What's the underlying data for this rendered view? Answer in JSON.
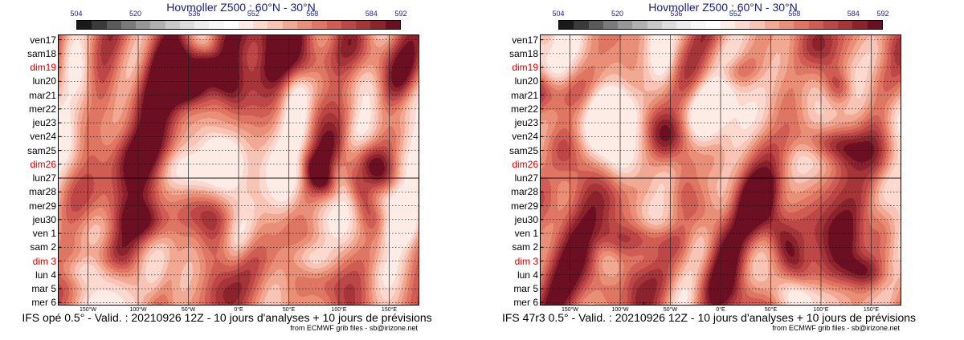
{
  "colorbar": {
    "tick_labels": [
      "504",
      "520",
      "536",
      "552",
      "568",
      "584",
      "592"
    ],
    "tick_values": [
      504,
      520,
      536,
      552,
      568,
      584,
      592
    ],
    "range": [
      504,
      592
    ],
    "colors": [
      "#1a1a1a",
      "#3a3a3a",
      "#5a5a5a",
      "#7a7a7a",
      "#979797",
      "#b0b0b0",
      "#c8c8c8",
      "#dcdcdc",
      "#ececec",
      "#f7f7f7",
      "#ffffff",
      "#fdebe6",
      "#fbd9cf",
      "#f8c4b5",
      "#f2a994",
      "#ea8f77",
      "#df7563",
      "#d05d53",
      "#bd4747",
      "#a53539",
      "#8c222c",
      "#6c0f22"
    ]
  },
  "charts": [
    {
      "title": "Hovmoller Z500 : 60°N - 30°N",
      "footer": "IFS opé 0.5° - Valid. : 20210926 12Z - 10 jours d'analyses + 10 jours de prévisions",
      "credit": "from ECMWF grib files - sb@irizone.net",
      "seed": 7
    },
    {
      "title": "Hovmoller Z500 : 60°N - 30°N",
      "footer": "IFS 47r3 0.5° - Valid. : 20210926 12Z - 10 jours d'analyses + 10 jours de prévisions",
      "credit": "from ECMWF grib files - sb@irizone.net",
      "seed": 11
    }
  ],
  "chart_data": {
    "type": "heatmap",
    "variable": "Z500 (dam)",
    "latitude_band": "60°N - 30°N",
    "y_categories": [
      "ven17",
      "sam18",
      "dim19",
      "lun20",
      "mar21",
      "mer22",
      "jeu23",
      "ven24",
      "sam25",
      "dim26",
      "lun27",
      "mar28",
      "mer29",
      "jeu30",
      "ven 1",
      "sam 2",
      "dim 3",
      "lun 4",
      "mar 5",
      "mer 6"
    ],
    "sunday_labels": [
      "dim19",
      "dim26",
      "dim 3"
    ],
    "x_ticks": [
      "150°W",
      "100°W",
      "50°W",
      "0°E",
      "50°E",
      "100°E",
      "150°E"
    ],
    "x_tick_values": [
      -150,
      -100,
      -50,
      0,
      50,
      100,
      150
    ],
    "xlim": [
      -180,
      180
    ],
    "analysis_forecast_boundary": "lun27",
    "color_range": [
      504,
      592
    ]
  }
}
